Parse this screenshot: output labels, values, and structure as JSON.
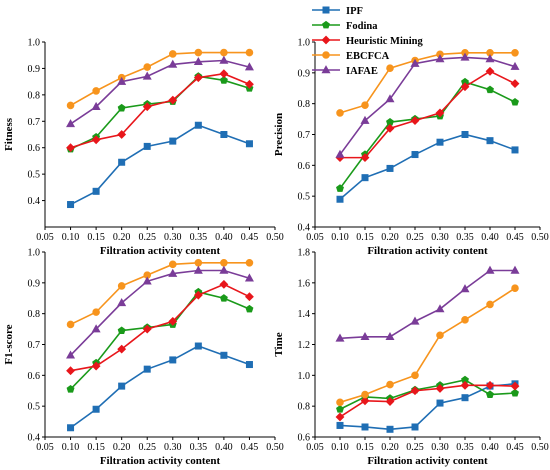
{
  "chart_data": [
    {
      "type": "line",
      "xlabel": "Filtration activity content",
      "ylabel": "Fitness",
      "xlim": [
        0.05,
        0.5
      ],
      "ylim": [
        0.3,
        1.0
      ],
      "x_ticks": [
        "0.05",
        "0.10",
        "0.15",
        "0.20",
        "0.25",
        "0.30",
        "0.35",
        "0.40",
        "0.45",
        "0.50"
      ],
      "y_ticks": [
        "0.4",
        "0.5",
        "0.6",
        "0.7",
        "0.8",
        "0.9",
        "1.0"
      ],
      "x": [
        0.1,
        0.15,
        0.2,
        0.25,
        0.3,
        0.35,
        0.4,
        0.45
      ],
      "series": [
        {
          "name": "IPF",
          "values": [
            0.385,
            0.435,
            0.545,
            0.605,
            0.625,
            0.685,
            0.65,
            0.615
          ]
        },
        {
          "name": "Fodina",
          "values": [
            0.595,
            0.64,
            0.75,
            0.765,
            0.775,
            0.87,
            0.855,
            0.825
          ]
        },
        {
          "name": "Heuristic Mining",
          "values": [
            0.6,
            0.63,
            0.65,
            0.755,
            0.78,
            0.865,
            0.88,
            0.84
          ]
        },
        {
          "name": "EBCFCA",
          "values": [
            0.76,
            0.815,
            0.865,
            0.905,
            0.955,
            0.96,
            0.96,
            0.96
          ]
        },
        {
          "name": "IAFAE",
          "values": [
            0.69,
            0.755,
            0.85,
            0.87,
            0.915,
            0.925,
            0.93,
            0.905
          ]
        }
      ]
    },
    {
      "type": "line",
      "xlabel": "Filtration activity content",
      "ylabel": "Precision",
      "xlim": [
        0.05,
        0.5
      ],
      "ylim": [
        0.4,
        1.0
      ],
      "x_ticks": [
        "0.05",
        "0.10",
        "0.15",
        "0.20",
        "0.25",
        "0.30",
        "0.35",
        "0.40",
        "0.45",
        "0.50"
      ],
      "y_ticks": [
        "0.4",
        "0.5",
        "0.6",
        "0.7",
        "0.8",
        "0.9",
        "1.0"
      ],
      "x": [
        0.1,
        0.15,
        0.2,
        0.25,
        0.3,
        0.35,
        0.4,
        0.45
      ],
      "series": [
        {
          "name": "IPF",
          "values": [
            0.49,
            0.56,
            0.59,
            0.635,
            0.675,
            0.7,
            0.68,
            0.65
          ]
        },
        {
          "name": "Fodina",
          "values": [
            0.525,
            0.635,
            0.74,
            0.75,
            0.76,
            0.87,
            0.845,
            0.805
          ]
        },
        {
          "name": "Heuristic Mining",
          "values": [
            0.625,
            0.625,
            0.72,
            0.745,
            0.77,
            0.855,
            0.905,
            0.865
          ]
        },
        {
          "name": "EBCFCA",
          "values": [
            0.77,
            0.795,
            0.915,
            0.94,
            0.96,
            0.965,
            0.965,
            0.965
          ]
        },
        {
          "name": "IAFAE",
          "values": [
            0.635,
            0.745,
            0.815,
            0.93,
            0.945,
            0.95,
            0.945,
            0.92
          ]
        }
      ]
    },
    {
      "type": "line",
      "xlabel": "Filtration activity content",
      "ylabel": "F1-score",
      "xlim": [
        0.05,
        0.5
      ],
      "ylim": [
        0.4,
        1.0
      ],
      "x_ticks": [
        "0.05",
        "0.10",
        "0.15",
        "0.20",
        "0.25",
        "0.30",
        "0.35",
        "0.40",
        "0.45",
        "0.50"
      ],
      "y_ticks": [
        "0.4",
        "0.5",
        "0.6",
        "0.7",
        "0.8",
        "0.9",
        "1.0"
      ],
      "x": [
        0.1,
        0.15,
        0.2,
        0.25,
        0.3,
        0.35,
        0.4,
        0.45
      ],
      "series": [
        {
          "name": "IPF",
          "values": [
            0.43,
            0.49,
            0.565,
            0.62,
            0.65,
            0.695,
            0.665,
            0.635
          ]
        },
        {
          "name": "Fodina",
          "values": [
            0.555,
            0.64,
            0.745,
            0.755,
            0.765,
            0.87,
            0.85,
            0.815
          ]
        },
        {
          "name": "Heuristic Mining",
          "values": [
            0.615,
            0.63,
            0.685,
            0.75,
            0.775,
            0.86,
            0.895,
            0.855
          ]
        },
        {
          "name": "EBCFCA",
          "values": [
            0.765,
            0.805,
            0.89,
            0.925,
            0.96,
            0.965,
            0.965,
            0.965
          ]
        },
        {
          "name": "IAFAE",
          "values": [
            0.665,
            0.75,
            0.835,
            0.905,
            0.93,
            0.94,
            0.94,
            0.915
          ]
        }
      ]
    },
    {
      "type": "line",
      "xlabel": "Filtration activity content",
      "ylabel": "Time",
      "xlim": [
        0.05,
        0.5
      ],
      "ylim": [
        0.6,
        1.8
      ],
      "x_ticks": [
        "0.05",
        "0.10",
        "0.15",
        "0.20",
        "0.25",
        "0.30",
        "0.35",
        "0.40",
        "0.45",
        "0.50"
      ],
      "y_ticks": [
        "0.6",
        "0.8",
        "1.0",
        "1.2",
        "1.4",
        "1.6",
        "1.8"
      ],
      "x": [
        0.1,
        0.15,
        0.2,
        0.25,
        0.3,
        0.35,
        0.4,
        0.45
      ],
      "series": [
        {
          "name": "IPF",
          "values": [
            0.675,
            0.665,
            0.65,
            0.665,
            0.82,
            0.855,
            0.93,
            0.945
          ]
        },
        {
          "name": "Fodina",
          "values": [
            0.78,
            0.86,
            0.85,
            0.905,
            0.935,
            0.97,
            0.875,
            0.885
          ]
        },
        {
          "name": "Heuristic Mining",
          "values": [
            0.73,
            0.835,
            0.83,
            0.9,
            0.915,
            0.935,
            0.935,
            0.93
          ]
        },
        {
          "name": "EBCFCA",
          "values": [
            0.825,
            0.875,
            0.94,
            1.0,
            1.26,
            1.36,
            1.46,
            1.565
          ]
        },
        {
          "name": "IAFAE",
          "values": [
            1.24,
            1.25,
            1.25,
            1.35,
            1.43,
            1.56,
            1.68,
            1.68
          ]
        }
      ]
    }
  ],
  "legend": {
    "entries": [
      {
        "name": "IPF",
        "color": "#1f6eb4",
        "marker": "square"
      },
      {
        "name": "Fodina",
        "color": "#1a9a1a",
        "marker": "pentagon"
      },
      {
        "name": "Heuristic Mining",
        "color": "#e8161b",
        "marker": "diamond"
      },
      {
        "name": "EBCFCA",
        "color": "#f7941d",
        "marker": "circle"
      },
      {
        "name": "IAFAE",
        "color": "#7a3c98",
        "marker": "triangle"
      }
    ],
    "placement": "top-center"
  }
}
